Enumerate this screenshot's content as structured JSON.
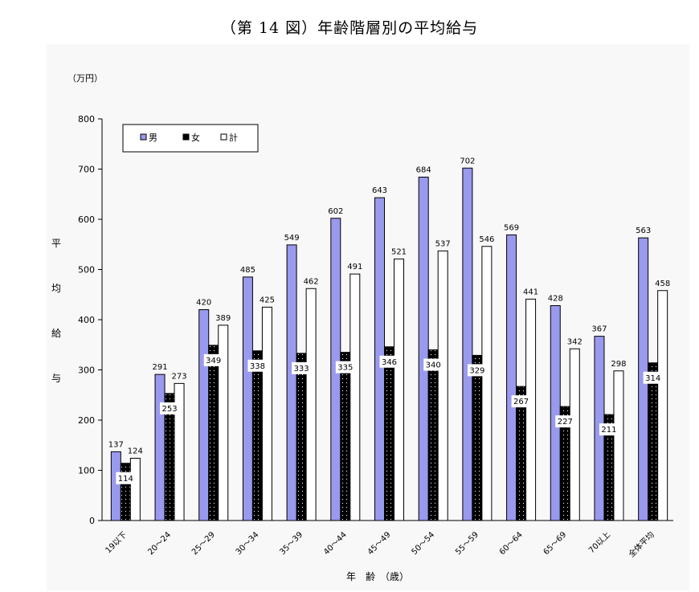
{
  "chart_data": {
    "type": "bar",
    "title": "（第 14 図）年齢階層別の平均給与",
    "unit_label": "（万円）",
    "ylabel_chars": [
      "平",
      "均",
      "給",
      "与"
    ],
    "xlabel": "年　齢　（歳）",
    "ylim": [
      0,
      800
    ],
    "yticks": [
      0,
      100,
      200,
      300,
      400,
      500,
      600,
      700,
      800
    ],
    "categories": [
      "19以下",
      "20～24",
      "25～29",
      "30～34",
      "35～39",
      "40～44",
      "45～49",
      "50～54",
      "55～59",
      "60～64",
      "65～69",
      "70以上",
      "全体平均"
    ],
    "legend_position": "top-left",
    "grid": false,
    "series": [
      {
        "name": "男",
        "color": "#9999ee",
        "values": [
          137,
          291,
          420,
          485,
          549,
          602,
          643,
          684,
          702,
          569,
          428,
          367,
          563
        ]
      },
      {
        "name": "女",
        "color": "#000000",
        "values": [
          114,
          253,
          349,
          338,
          333,
          335,
          346,
          340,
          329,
          267,
          227,
          211,
          314
        ]
      },
      {
        "name": "計",
        "color": "#ffffff",
        "values": [
          124,
          273,
          389,
          425,
          462,
          491,
          521,
          537,
          546,
          441,
          342,
          298,
          458
        ]
      }
    ]
  }
}
